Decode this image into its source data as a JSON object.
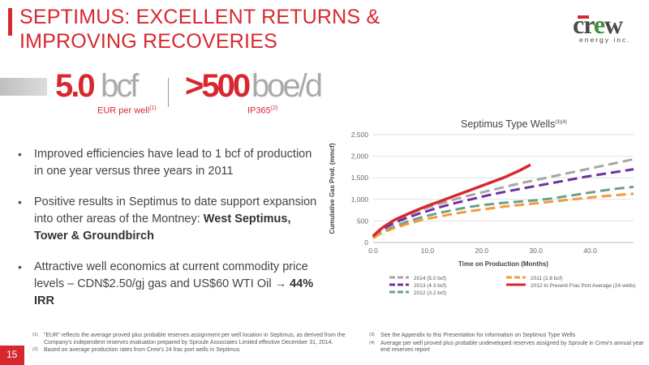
{
  "title": [
    "SEPTIMUS: EXCELLENT RETURNS &",
    "IMPROVING RECOVERIES"
  ],
  "logo": {
    "word_prefix": "cr",
    "word_e": "e",
    "word_suffix": "w",
    "subtitle": "energy inc."
  },
  "stats": [
    {
      "value": "5.0",
      "unit": "bcf",
      "label": "EUR per well",
      "note": "(1)"
    },
    {
      "value": ">500",
      "unit": "boe/d",
      "label": "IP365",
      "note": "(2)"
    }
  ],
  "bullets": [
    {
      "text": "Improved efficiencies have lead to 1 bcf of production in one year versus three years in 2011"
    },
    {
      "text": "Positive results in Septimus to date support expansion into other areas of the Montney:",
      "bold": "West Septimus, Tower & Groundbirch"
    },
    {
      "text": "Attractive well economics at current commodity price levels – CDN$2.50/gj gas and US$60 WTI Oil →",
      "bold": "44% IRR"
    }
  ],
  "chart_data": {
    "type": "line",
    "title": "Septimus Type Wells",
    "title_note": "(3)(4)",
    "xlabel": "Time on Production (Months)",
    "ylabel": "Cumulative Gas Prod. (mmcf)",
    "xlim": [
      0,
      48
    ],
    "ylim": [
      0,
      2500
    ],
    "xticks": [
      "0.0",
      "10.0",
      "20.0",
      "30.0",
      "40.0"
    ],
    "yticks": [
      "0",
      "500",
      "1,000",
      "1,500",
      "2,000",
      "2,500"
    ],
    "grid": "horizontal",
    "legend": "bottom",
    "series": [
      {
        "name": "2014 (5.0 bcf)",
        "color": "#a6a6a6",
        "dash": true,
        "x": [
          0,
          1,
          2,
          4,
          6,
          8,
          10,
          12,
          15,
          18,
          21,
          24,
          27,
          30,
          33,
          36,
          39,
          42,
          45,
          48
        ],
        "y": [
          140,
          270,
          360,
          510,
          620,
          720,
          810,
          890,
          1000,
          1100,
          1190,
          1280,
          1370,
          1450,
          1530,
          1610,
          1690,
          1770,
          1850,
          1930
        ]
      },
      {
        "name": "2013 (4.3 bcf)",
        "color": "#7030a0",
        "dash": true,
        "x": [
          0,
          1,
          2,
          4,
          6,
          8,
          10,
          12,
          15,
          18,
          21,
          24,
          27,
          30,
          33,
          36,
          39,
          42,
          45,
          48
        ],
        "y": [
          130,
          250,
          330,
          460,
          560,
          650,
          730,
          810,
          910,
          1000,
          1090,
          1170,
          1240,
          1310,
          1380,
          1450,
          1520,
          1580,
          1640,
          1700
        ]
      },
      {
        "name": "2012 (3.2 bcf)",
        "color": "#6aa08a",
        "dash": true,
        "x": [
          0,
          1,
          2,
          4,
          6,
          8,
          10,
          12,
          15,
          18,
          21,
          24,
          27,
          30,
          33,
          36,
          39,
          42,
          45,
          48
        ],
        "y": [
          110,
          200,
          270,
          380,
          470,
          550,
          620,
          680,
          760,
          830,
          880,
          920,
          950,
          980,
          1020,
          1080,
          1140,
          1200,
          1250,
          1290
        ]
      },
      {
        "name": "2011 (2.8 bcf)",
        "color": "#f29b38",
        "dash": true,
        "x": [
          0,
          1,
          2,
          4,
          6,
          8,
          10,
          12,
          15,
          18,
          21,
          24,
          27,
          30,
          33,
          36,
          39,
          42,
          45,
          48
        ],
        "y": [
          100,
          180,
          240,
          340,
          420,
          490,
          550,
          600,
          670,
          730,
          780,
          830,
          870,
          910,
          950,
          990,
          1030,
          1070,
          1100,
          1130
        ]
      },
      {
        "name": "2012 to Present Frac Port Average (24 wells)",
        "color": "#d7282f",
        "dash": false,
        "x": [
          0,
          1,
          2,
          4,
          6,
          8,
          10,
          12,
          15,
          18,
          21,
          24,
          27,
          29
        ],
        "y": [
          150,
          270,
          370,
          530,
          640,
          750,
          850,
          940,
          1080,
          1220,
          1360,
          1500,
          1670,
          1800
        ]
      }
    ]
  },
  "footnotes_left": [
    {
      "marker": "(1)",
      "text": "\"EUR\" reflects the average proved plus probable reserves assignment per well location in Septimus, as derived from the Company's independent reserves evaluation prepared by Sproule Associates Limited effective December 31, 2014."
    },
    {
      "marker": "(2)",
      "text": "Based on average production rates from Crew's 24 frac port wells in Septimus"
    }
  ],
  "footnotes_right": [
    {
      "marker": "(3)",
      "text": "See the Appendix to this Presentation for information on Septimus Type Wells"
    },
    {
      "marker": "(4)",
      "text": "Average per well proved plus probable undeveloped reserves assigned by Sproule in Crew's annual year end reserves report"
    }
  ],
  "page_number": "15",
  "colors": {
    "accent": "#d7282f",
    "muted": "#aaaaaa"
  }
}
